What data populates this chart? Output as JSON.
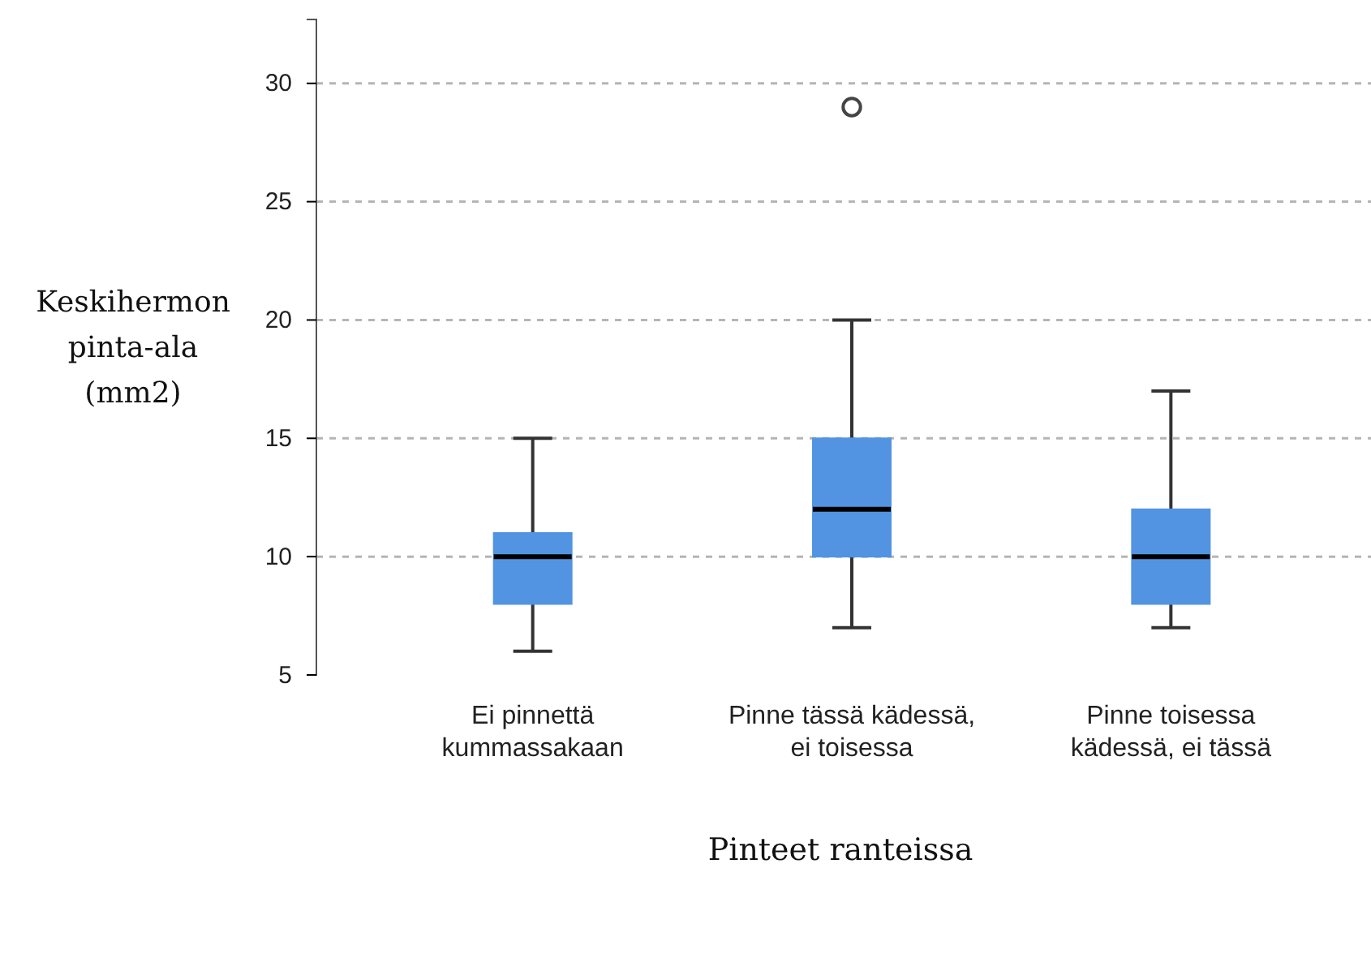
{
  "chart_data": {
    "type": "box",
    "xlabel": "Pinteet ranteissa",
    "ylabel": "Keskihermon pinta-ala (mm2)",
    "categories": [
      "Ei pinnettä kummassakaan",
      "Pinne tässä kädessä, ei toisessa",
      "Pinne toisessa kädessä, ei tässä"
    ],
    "color": "#5294e2",
    "boxes": [
      {
        "low": 6,
        "q1": 8,
        "median": 10,
        "q3": 11,
        "high": 15
      },
      {
        "low": 7,
        "q1": 10,
        "median": 12,
        "q3": 15,
        "high": 20,
        "outliers": [
          29
        ]
      },
      {
        "low": 7,
        "q1": 8,
        "median": 10,
        "q3": 12,
        "high": 17
      }
    ],
    "ylim": [
      5,
      32.7
    ],
    "yticks": [
      5,
      10,
      15,
      20,
      25,
      30
    ],
    "grid": "y",
    "marker": "circle"
  }
}
